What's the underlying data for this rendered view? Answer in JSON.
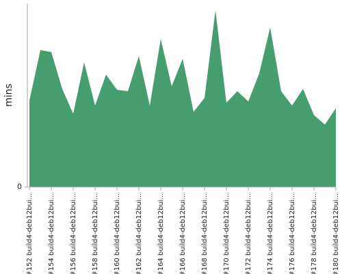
{
  "chart_data": {
    "type": "area",
    "y_label": "mins",
    "categories": [
      "#152 build4-deb12bui...",
      null,
      "#154 build4-deb12bui...",
      null,
      "#156 build4-deb12bui...",
      null,
      "#158 build4-deb12bui...",
      null,
      "#160 build4-deb12bui...",
      null,
      "#162 build4-deb12bui...",
      null,
      "#164 build4-deb12bui...",
      null,
      "#166 build4-deb12bui...",
      null,
      "#168 build4-deb12bui...",
      null,
      "#170 build4-deb12bui...",
      null,
      "#172 build4-deb12bui...",
      null,
      "#174 build4-deb12bui...",
      null,
      "#176 build4-deb12bui...",
      null,
      "#178 build4-deb12bui...",
      null,
      "#180 build4-deb12bui..."
    ],
    "values": [
      4.7,
      7.46,
      7.35,
      5.34,
      3.99,
      6.79,
      4.44,
      6.12,
      5.3,
      5.22,
      7.13,
      4.44,
      8.06,
      5.49,
      6.98,
      4.1,
      4.85,
      9.63,
      4.59,
      5.22,
      4.66,
      6.19,
      8.69,
      5.22,
      4.44,
      5.34,
      3.92,
      3.4,
      4.29
    ],
    "color": "#469e6e",
    "ylim": [
      0,
      10
    ],
    "yticks": [
      0
    ]
  }
}
